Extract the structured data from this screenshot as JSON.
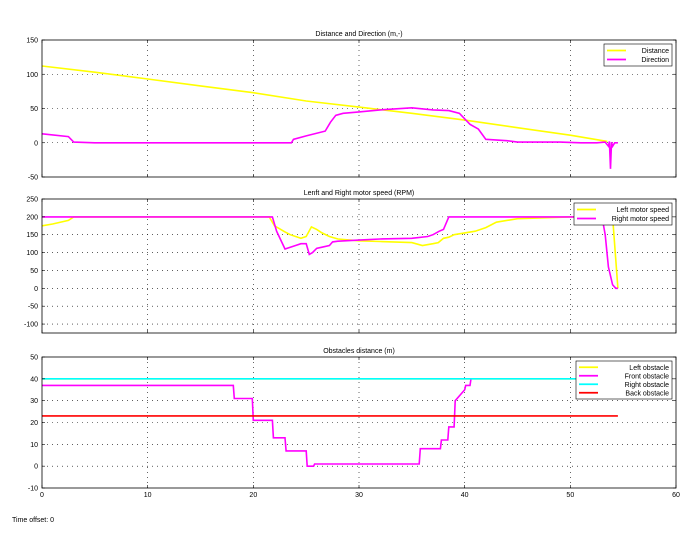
{
  "footer": {
    "label": "Time offset:",
    "value": "0"
  },
  "chart_data": [
    {
      "type": "line",
      "title": "Distance and Direction (m,-)",
      "xlim": [
        0,
        60
      ],
      "ylim": [
        -50,
        150
      ],
      "xticks": [
        0,
        10,
        20,
        30,
        40,
        50,
        60
      ],
      "yticks": [
        -50,
        0,
        50,
        100,
        150
      ],
      "show_xtick_labels": false,
      "grid": true,
      "legend_position": "top-right",
      "series": [
        {
          "name": "Distance",
          "color": "#ffff00",
          "x": [
            0,
            5,
            10,
            15,
            20,
            25,
            30,
            35,
            40,
            45,
            50,
            53.5
          ],
          "y": [
            112,
            103,
            93,
            83,
            73,
            61,
            52,
            43,
            33,
            22,
            11,
            2
          ]
        },
        {
          "name": "Direction",
          "color": "#ff00ff",
          "x": [
            0,
            2.5,
            3,
            5,
            10,
            15,
            20,
            23.6,
            23.8,
            25,
            26.8,
            27.3,
            27.8,
            28.5,
            30,
            32,
            35,
            37,
            38.5,
            39.5,
            40.5,
            41.3,
            42,
            44,
            45,
            47,
            49,
            51,
            52.5,
            53.3,
            53.6,
            53.7,
            53.8,
            53.9,
            54,
            54.2,
            54.5
          ],
          "y": [
            13,
            9,
            1,
            0,
            0,
            0,
            0,
            0,
            5,
            10,
            17,
            30,
            40,
            43,
            45,
            48,
            51,
            48,
            47,
            43,
            27,
            20,
            5,
            3,
            1,
            1,
            1,
            0,
            0,
            1,
            -5,
            2,
            -38,
            1,
            -5,
            0,
            0
          ]
        }
      ]
    },
    {
      "type": "line",
      "title": "Lenft and Right motor speed (RPM)",
      "xlim": [
        0,
        60
      ],
      "ylim": [
        -125,
        250
      ],
      "xticks": [
        0,
        10,
        20,
        30,
        40,
        50,
        60
      ],
      "yticks": [
        -100,
        -50,
        0,
        50,
        100,
        150,
        200,
        250
      ],
      "show_xtick_labels": false,
      "grid": true,
      "legend_position": "top-right",
      "series": [
        {
          "name": "Left motor speed",
          "color": "#ffff00",
          "x": [
            0,
            1,
            2.5,
            3,
            5,
            10,
            15,
            20,
            21.5,
            22,
            23,
            23.5,
            24.5,
            25,
            25.5,
            26,
            26.5,
            27.2,
            28,
            30,
            32,
            35,
            36,
            37,
            37.5,
            38,
            38.5,
            39,
            40,
            41,
            42,
            43,
            45,
            50,
            53,
            53.5,
            54,
            54.5
          ],
          "y": [
            175,
            180,
            190,
            200,
            200,
            200,
            200,
            200,
            200,
            175,
            158,
            150,
            140,
            145,
            172,
            165,
            155,
            145,
            138,
            133,
            131,
            128,
            120,
            125,
            128,
            140,
            143,
            150,
            155,
            160,
            170,
            185,
            195,
            200,
            200,
            200,
            200,
            0
          ]
        },
        {
          "name": "Right motor speed",
          "color": "#ff00ff",
          "x": [
            0,
            5,
            10,
            15,
            20,
            21.8,
            22.2,
            23,
            23.5,
            24,
            24.5,
            25,
            25.3,
            25.6,
            26,
            26.5,
            27.2,
            27.5,
            28,
            30,
            32,
            35,
            36.5,
            37,
            37.6,
            38,
            38.5,
            39,
            40,
            42,
            45,
            48,
            50,
            51,
            52,
            53,
            53.3,
            53.6,
            54,
            54.3,
            54.5
          ],
          "y": [
            200,
            200,
            200,
            200,
            200,
            200,
            160,
            110,
            115,
            120,
            125,
            125,
            95,
            100,
            112,
            115,
            120,
            130,
            132,
            135,
            138,
            140,
            145,
            150,
            160,
            165,
            200,
            200,
            200,
            200,
            200,
            200,
            200,
            200,
            200,
            200,
            150,
            60,
            10,
            0,
            0
          ]
        }
      ]
    },
    {
      "type": "line",
      "title": "Obstacles distance (m)",
      "xlim": [
        0,
        60
      ],
      "ylim": [
        -10,
        50
      ],
      "xticks": [
        0,
        10,
        20,
        30,
        40,
        50,
        60
      ],
      "yticks": [
        -10,
        0,
        10,
        20,
        30,
        40,
        50
      ],
      "show_xtick_labels": true,
      "grid": true,
      "legend_position": "top-right",
      "series": [
        {
          "name": "Left obstacle",
          "color": "#ffff00",
          "x": [
            0,
            54.5
          ],
          "y": [
            40,
            40
          ]
        },
        {
          "name": "Front obstacle",
          "color": "#ff00ff",
          "x": [
            0,
            18.1,
            18.2,
            19.9,
            20.0,
            21.8,
            21.9,
            23.0,
            23.1,
            25.0,
            25.1,
            25.7,
            25.8,
            35.7,
            35.8,
            37.7,
            37.8,
            38.4,
            38.5,
            39.0,
            39.1,
            40.0,
            40.1,
            40.5,
            40.6
          ],
          "y": [
            37,
            37,
            31,
            31,
            21,
            21,
            13,
            13,
            7,
            7,
            0,
            0,
            1,
            1,
            8,
            8,
            12,
            12,
            18,
            18,
            30,
            35,
            37,
            37,
            40
          ]
        },
        {
          "name": "Right obstacle",
          "color": "#00ffff",
          "x": [
            0,
            54.5
          ],
          "y": [
            40,
            40
          ]
        },
        {
          "name": "Back obstacle",
          "color": "#ff0000",
          "x": [
            0,
            54.5
          ],
          "y": [
            23,
            23
          ]
        }
      ]
    }
  ]
}
